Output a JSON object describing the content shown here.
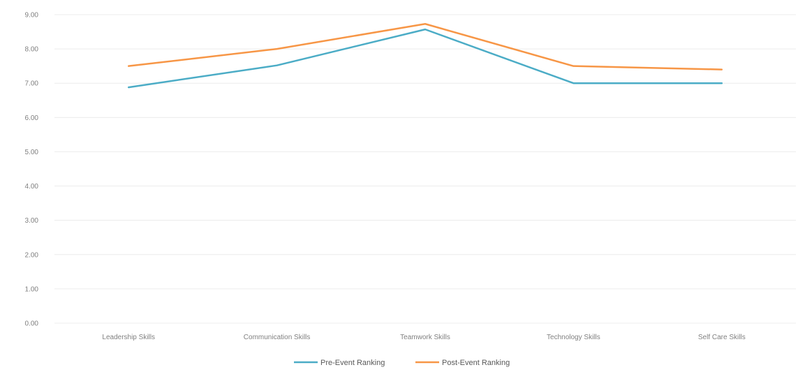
{
  "chart_data": {
    "type": "line",
    "categories": [
      "Leadership Skills",
      "Communication Skills",
      "Teamwork Skills",
      "Technology Skills",
      "Self Care Skills"
    ],
    "ylim": [
      0,
      9
    ],
    "yticks": [
      "0.00",
      "1.00",
      "2.00",
      "3.00",
      "4.00",
      "5.00",
      "6.00",
      "7.00",
      "8.00",
      "9.00"
    ],
    "grid": true,
    "legend_position": "bottom",
    "series": [
      {
        "name": "Pre-Event Ranking",
        "color": "#4bacc6",
        "values": [
          6.88,
          7.52,
          8.57,
          7.0,
          7.0
        ]
      },
      {
        "name": "Post-Event Ranking",
        "color": "#f79646",
        "values": [
          7.5,
          8.0,
          8.73,
          7.5,
          7.4
        ]
      }
    ]
  }
}
